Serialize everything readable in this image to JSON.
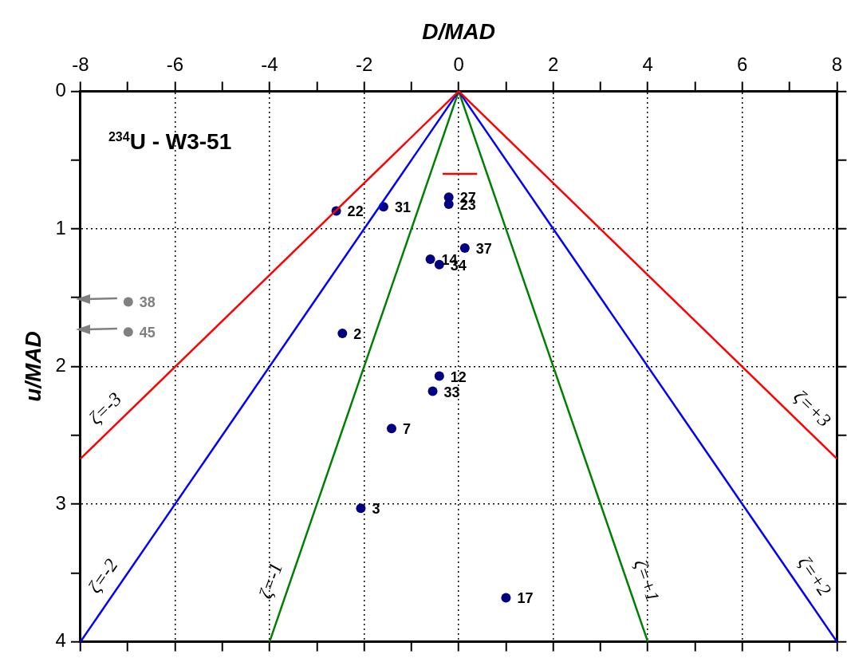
{
  "chart_data": {
    "type": "scatter",
    "xlabel": "D/MAD",
    "ylabel": "u/MAD",
    "annotations": [
      "$^{234}$U - W3-51",
      {
        "text": "22",
        "x": -2.59,
        "y": 0.87
      },
      {
        "text": "31",
        "x": -1.59,
        "y": 0.84
      },
      {
        "text": "27",
        "x": -0.21,
        "y": 0.77
      },
      {
        "text": "23",
        "x": -0.21,
        "y": 0.82
      },
      {
        "text": "37",
        "x": 0.13,
        "y": 1.14
      },
      {
        "text": "14",
        "x": -0.6,
        "y": 1.22
      },
      {
        "text": "34",
        "x": -0.41,
        "y": 1.26
      },
      {
        "text": "2",
        "x": -2.46,
        "y": 1.76
      },
      {
        "text": "12",
        "x": -0.41,
        "y": 2.07
      },
      {
        "text": "33",
        "x": -0.55,
        "y": 2.18
      },
      {
        "text": "7",
        "x": -1.42,
        "y": 2.45
      },
      {
        "text": "3",
        "x": -2.07,
        "y": 3.03
      },
      {
        "text": "17",
        "x": 1.0,
        "y": 3.68
      },
      {
        "text": "38",
        "x": -6.99,
        "y": 1.53
      },
      {
        "text": "45",
        "x": -6.99,
        "y": 1.75
      }
    ],
    "xlim": [
      -8,
      8
    ],
    "xticks": [
      -8,
      {
        "value": -7,
        "label": null
      },
      -6,
      {
        "value": -5,
        "label": null
      },
      -4,
      {
        "value": -3,
        "label": null
      },
      -2,
      {
        "value": -1,
        "label": null
      },
      0,
      {
        "value": 1,
        "label": null
      },
      2,
      {
        "value": 3,
        "label": null
      },
      4,
      {
        "value": 5,
        "label": null
      },
      6,
      {
        "value": 7,
        "label": null
      },
      8
    ],
    "ylim": [
      4,
      0
    ],
    "yticks": [
      0,
      {
        "value": 0.5,
        "label": null
      },
      1,
      {
        "value": 1.5,
        "label": null
      },
      2,
      {
        "value": 2.5,
        "label": null
      },
      3,
      {
        "value": 3.5,
        "label": null
      },
      4
    ],
    "grid": true,
    "legend": false,
    "marker": "circle",
    "series": [
      {
        "type": "line",
        "name": "ζ=-3",
        "color": "#ff0000",
        "x": [
          0,
          -8
        ],
        "values": [
          0,
          2.67
        ],
        "marker": "none"
      },
      {
        "type": "line",
        "name": "ζ=+3",
        "color": "#ff0000",
        "x": [
          0,
          8
        ],
        "values": [
          0,
          2.67
        ],
        "marker": "none"
      },
      {
        "type": "line",
        "name": "ζ=-2",
        "color": "#0000ff",
        "x": [
          0,
          -8
        ],
        "values": [
          0,
          4
        ],
        "marker": "none"
      },
      {
        "type": "line",
        "name": "ζ=+2",
        "color": "#0000ff",
        "x": [
          0,
          8
        ],
        "values": [
          0,
          4
        ],
        "marker": "none"
      },
      {
        "type": "line",
        "name": "ζ=-1",
        "color": "#008000",
        "x": [
          0,
          -4
        ],
        "values": [
          0,
          4
        ],
        "marker": "none"
      },
      {
        "type": "line",
        "name": "ζ=+1",
        "color": "#008000",
        "x": [
          0,
          4
        ],
        "values": [
          0,
          4
        ],
        "marker": "none"
      },
      {
        "type": "line",
        "color": "#ff0000",
        "x": [
          -0.34,
          0.39
        ],
        "values": [
          0.6,
          0.6
        ],
        "marker": "none"
      },
      {
        "color": "#000080",
        "x": [
          -2.59,
          -1.59,
          -0.21,
          -0.21,
          0.13,
          -0.6,
          -0.41,
          -2.46,
          -0.41,
          -0.55,
          -1.42,
          -2.07,
          1.0
        ],
        "values": [
          0.87,
          0.84,
          0.77,
          0.82,
          1.14,
          1.22,
          1.26,
          1.76,
          2.07,
          2.18,
          2.45,
          3.03,
          3.68
        ]
      },
      {
        "color": "#808080",
        "x": [
          -6.99,
          -6.99
        ],
        "values": [
          1.53,
          1.75
        ]
      }
    ]
  }
}
